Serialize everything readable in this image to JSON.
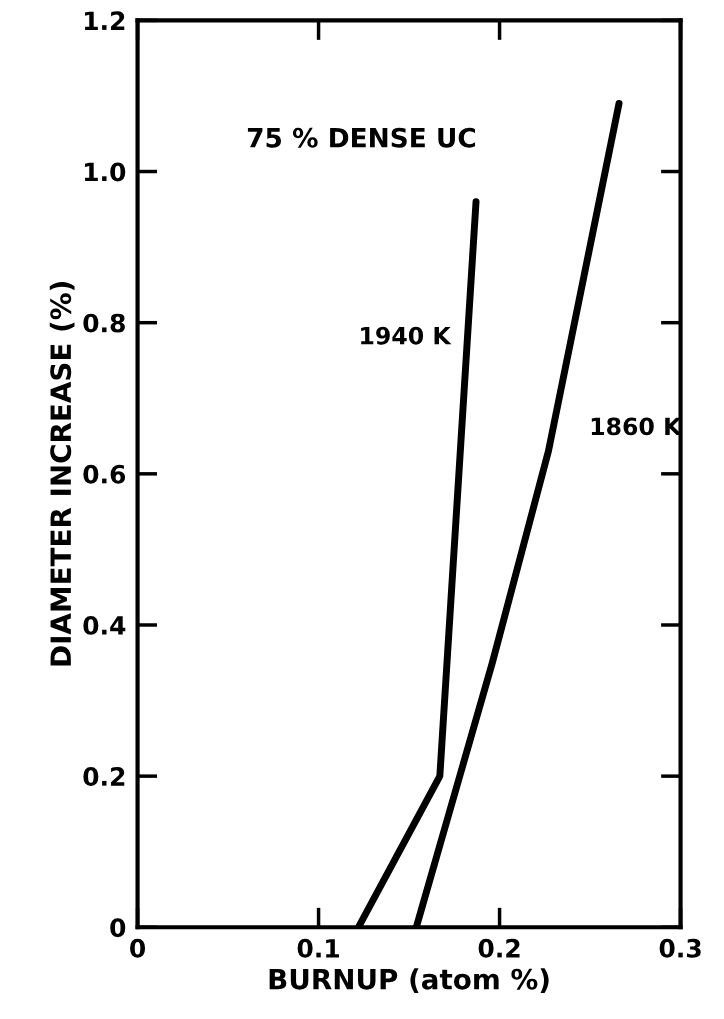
{
  "chart_data": {
    "type": "line",
    "xlabel": "BURNUP (atom %)",
    "ylabel": "DIAMETER INCREASE (%)",
    "xlim": [
      0,
      0.3
    ],
    "ylim": [
      0,
      1.2
    ],
    "xticks": [
      0,
      0.1,
      0.2,
      0.3
    ],
    "yticks": [
      0,
      0.2,
      0.4,
      0.6,
      0.8,
      {
        "value": 1.0,
        "label": "1.0"
      },
      1.2
    ],
    "series": [
      {
        "name": "1940 K",
        "color": "#000000",
        "x": [
          0.122,
          0.167,
          0.187
        ],
        "values": [
          0,
          0.2,
          0.96
        ]
      },
      {
        "name": "1860 K",
        "color": "#000000",
        "x": [
          0.154,
          0.178,
          0.196,
          0.227,
          0.266
        ],
        "values": [
          0,
          0.2,
          0.35,
          0.63,
          1.09
        ]
      }
    ],
    "annotations": [
      "75 % DENSE UC"
    ],
    "grid": false,
    "legend": false,
    "marker": "none",
    "line_style": "solid"
  }
}
